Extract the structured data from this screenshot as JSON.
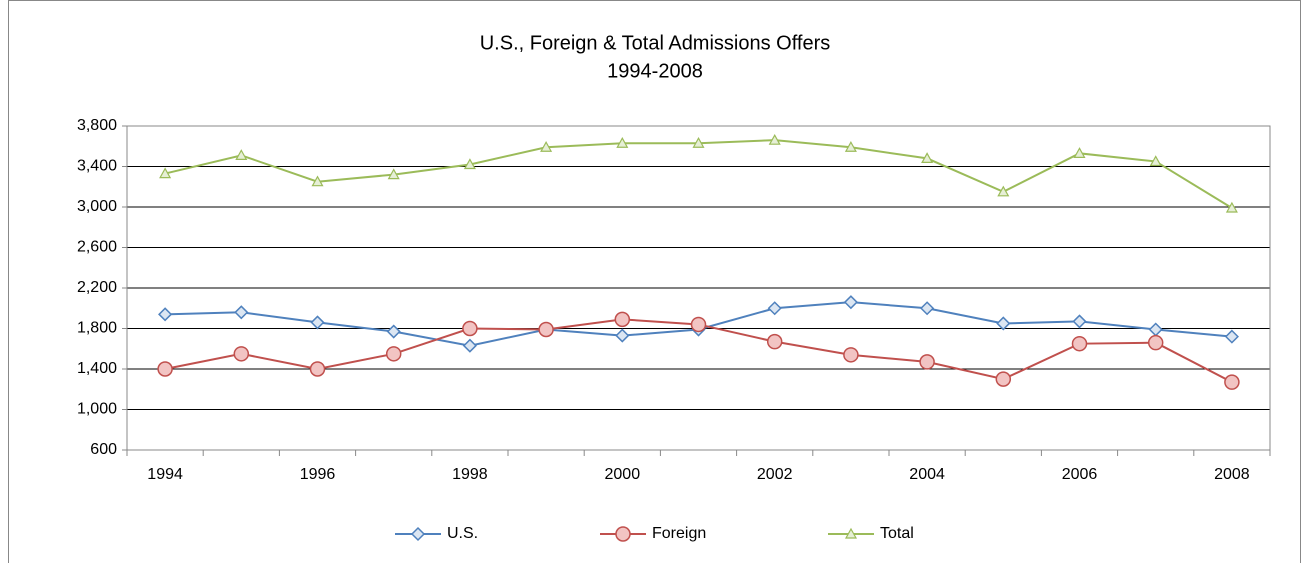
{
  "chart_data": {
    "type": "line",
    "title": "U.S., Foreign & Total Admissions Offers",
    "subtitle": "1994-2008",
    "categories": [
      "1994",
      null,
      "1996",
      null,
      "1998",
      null,
      "2000",
      null,
      "2002",
      null,
      "2004",
      null,
      "2006",
      null,
      "2008"
    ],
    "series": [
      {
        "name": "U.S.",
        "color": "#4f81bd",
        "marker": "diamond",
        "values": [
          1940,
          1960,
          1860,
          1770,
          1630,
          1790,
          1730,
          1790,
          2000,
          2060,
          2000,
          1850,
          1870,
          1790,
          1720
        ]
      },
      {
        "name": "Foreign",
        "color": "#c0504d",
        "marker": "circle",
        "values": [
          1400,
          1550,
          1400,
          1550,
          1800,
          1790,
          1890,
          1840,
          1670,
          1540,
          1470,
          1300,
          1650,
          1660,
          1270
        ]
      },
      {
        "name": "Total",
        "color": "#9bbb59",
        "marker": "triangle",
        "values": [
          3330,
          3510,
          3250,
          3320,
          3420,
          3590,
          3630,
          3630,
          3660,
          3590,
          3480,
          3150,
          3530,
          3450,
          2990
        ]
      }
    ],
    "ylim": [
      600,
      3800
    ],
    "yticks": [
      600,
      {
        "value": 1000,
        "label": "1,000"
      },
      {
        "value": 1400,
        "label": "1,400"
      },
      {
        "value": 1800,
        "label": "1,800"
      },
      {
        "value": 2200,
        "label": "2,200"
      },
      {
        "value": 2600,
        "label": "2,600"
      },
      {
        "value": 3000,
        "label": "3,000"
      },
      {
        "value": 3400,
        "label": "3,400"
      },
      {
        "value": 3800,
        "label": "3,800"
      }
    ],
    "grid": true,
    "legend": "bottom"
  }
}
